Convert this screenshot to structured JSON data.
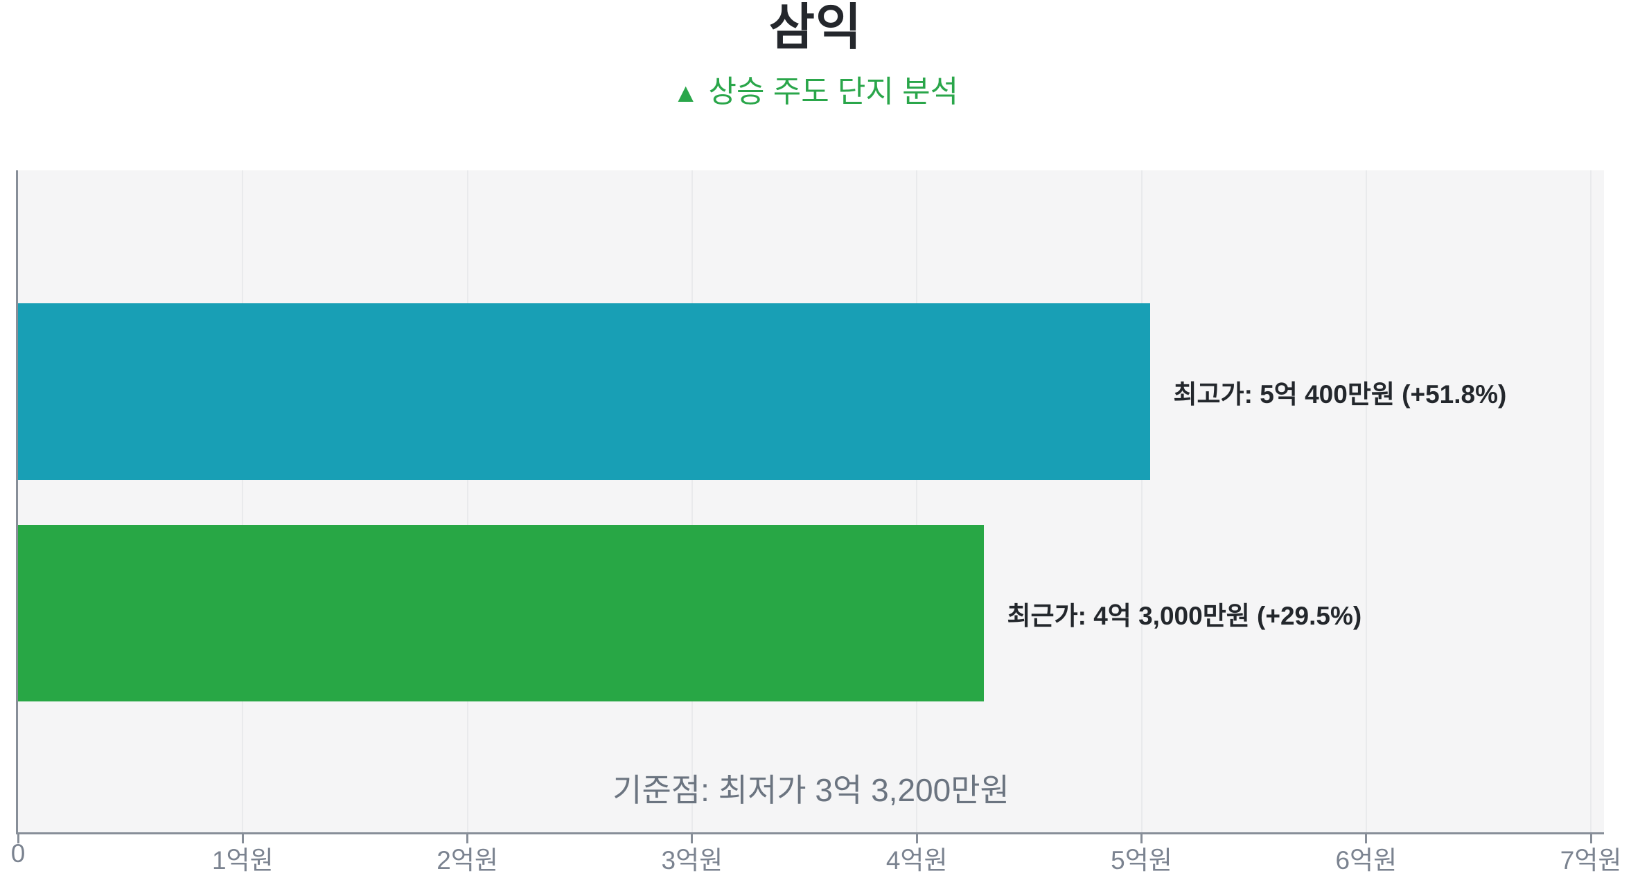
{
  "header": {
    "title": "삼익",
    "subtitle_icon": "▲",
    "subtitle_text": "상승 주도 단지 분석"
  },
  "chart_data": {
    "type": "bar",
    "orientation": "horizontal",
    "title": "삼익",
    "subtitle": "▲ 상승 주도 단지 분석",
    "unit": "억원",
    "bars": [
      {
        "name": "최고가",
        "value_eok": 5.04,
        "value_text": "5억 400만원",
        "pct_change": "+51.8%",
        "label": "최고가: 5억 400만원 (+51.8%)",
        "color": "#189fb5"
      },
      {
        "name": "최근가",
        "value_eok": 4.3,
        "value_text": "4억 3,000만원",
        "pct_change": "+29.5%",
        "label": "최근가: 4억 3,000만원 (+29.5%)",
        "color": "#28a745"
      }
    ],
    "baseline": {
      "label": "기준점: 최저가 3억 3,200만원",
      "name": "최저가",
      "value_eok": 3.32,
      "value_text": "3억 3,200만원"
    },
    "x_ticks": [
      {
        "value_eok": 0,
        "label": "0"
      },
      {
        "value_eok": 1,
        "label": "1억원"
      },
      {
        "value_eok": 2,
        "label": "2억원"
      },
      {
        "value_eok": 3,
        "label": "3억원"
      },
      {
        "value_eok": 4,
        "label": "4억원"
      },
      {
        "value_eok": 5,
        "label": "5억원"
      },
      {
        "value_eok": 6,
        "label": "6억원"
      },
      {
        "value_eok": 7,
        "label": "7억원"
      }
    ],
    "xlim_eok": [
      0,
      7.06
    ],
    "grid": true,
    "legend": "none",
    "colors": {
      "plot_bg": "#f5f5f6",
      "grid": "#e9eaec",
      "axis": "#878e98",
      "tick_label": "#7b8390",
      "annotation": "#6b7480",
      "title": "#24272c",
      "subtitle_green": "#2aa64a",
      "bar_label": "#23272c"
    }
  }
}
